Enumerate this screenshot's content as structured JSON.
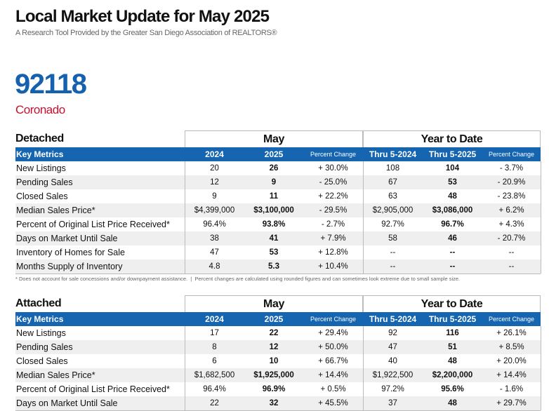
{
  "header": {
    "title": "Local Market Update for May 2025",
    "subtitle": "A Research Tool Provided by the Greater San Diego Association of REALTORS®"
  },
  "location": {
    "zip": "92118",
    "area": "Coronado"
  },
  "tables": [
    {
      "section": "Detached",
      "groups": [
        "May",
        "Year to Date"
      ],
      "columns": [
        "Key Metrics",
        "2024",
        "2025",
        "Percent Change",
        "Thru 5-2024",
        "Thru 5-2025",
        "Percent Change"
      ],
      "rows": [
        [
          "New Listings",
          "20",
          "26",
          "+ 30.0%",
          "108",
          "104",
          "- 3.7%"
        ],
        [
          "Pending Sales",
          "12",
          "9",
          "- 25.0%",
          "67",
          "53",
          "- 20.9%"
        ],
        [
          "Closed Sales",
          "9",
          "11",
          "+ 22.2%",
          "63",
          "48",
          "- 23.8%"
        ],
        [
          "Median Sales Price*",
          "$4,399,000",
          "$3,100,000",
          "- 29.5%",
          "$2,905,000",
          "$3,086,000",
          "+ 6.2%"
        ],
        [
          "Percent of Original List Price Received*",
          "96.4%",
          "93.8%",
          "- 2.7%",
          "92.7%",
          "96.7%",
          "+ 4.3%"
        ],
        [
          "Days on Market Until Sale",
          "38",
          "41",
          "+ 7.9%",
          "58",
          "46",
          "- 20.7%"
        ],
        [
          "Inventory of Homes for Sale",
          "47",
          "53",
          "+ 12.8%",
          "--",
          "--",
          "--"
        ],
        [
          "Months Supply of Inventory",
          "4.8",
          "5.3",
          "+ 10.4%",
          "--",
          "--",
          "--"
        ]
      ],
      "footnote": "* Does not account for sale concessions and/or downpayment assistance.  |  Percent changes are calculated using rounded figures and can sometimes look extreme due to small sample size."
    },
    {
      "section": "Attached",
      "groups": [
        "May",
        "Year to Date"
      ],
      "columns": [
        "Key Metrics",
        "2024",
        "2025",
        "Percent Change",
        "Thru 5-2024",
        "Thru 5-2025",
        "Percent Change"
      ],
      "rows": [
        [
          "New Listings",
          "17",
          "22",
          "+ 29.4%",
          "92",
          "116",
          "+ 26.1%"
        ],
        [
          "Pending Sales",
          "8",
          "12",
          "+ 50.0%",
          "47",
          "51",
          "+ 8.5%"
        ],
        [
          "Closed Sales",
          "6",
          "10",
          "+ 66.7%",
          "40",
          "48",
          "+ 20.0%"
        ],
        [
          "Median Sales Price*",
          "$1,682,500",
          "$1,925,000",
          "+ 14.4%",
          "$1,922,500",
          "$2,200,000",
          "+ 14.4%"
        ],
        [
          "Percent of Original List Price Received*",
          "96.4%",
          "96.9%",
          "+ 0.5%",
          "97.2%",
          "95.6%",
          "- 1.6%"
        ],
        [
          "Days on Market Until Sale",
          "22",
          "32",
          "+ 45.5%",
          "37",
          "48",
          "+ 29.7%"
        ]
      ]
    }
  ]
}
